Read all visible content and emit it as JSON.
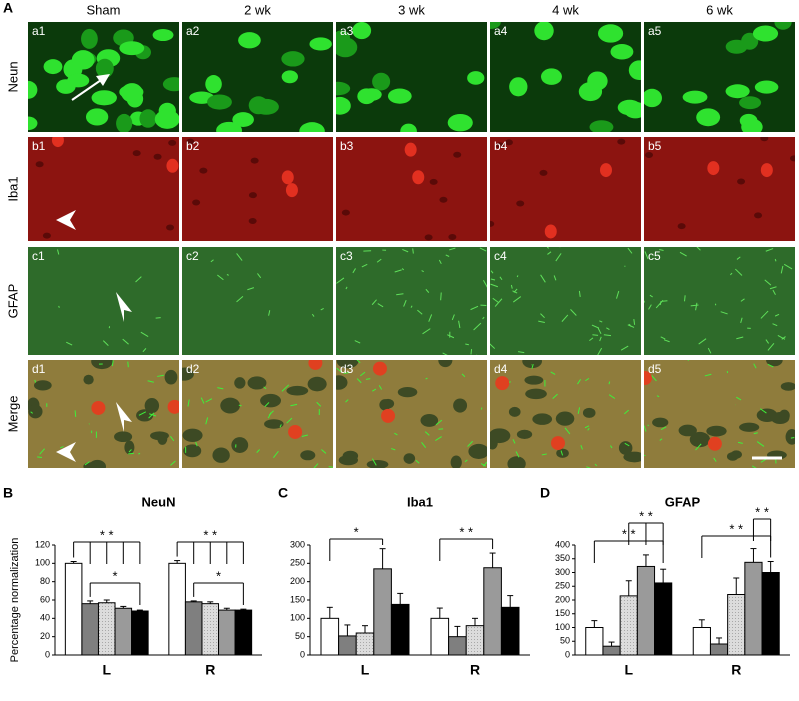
{
  "micrographs": {
    "letter": "A",
    "columns": [
      "Sham",
      "2 wk",
      "3 wk",
      "4 wk",
      "6 wk"
    ],
    "rows": [
      {
        "label": "Neun",
        "tiles": [
          "a1",
          "a2",
          "a3",
          "a4",
          "a5"
        ]
      },
      {
        "label": "Iba1",
        "tiles": [
          "b1",
          "b2",
          "b3",
          "b4",
          "b5"
        ]
      },
      {
        "label": "GFAP",
        "tiles": [
          "c1",
          "c2",
          "c3",
          "c4",
          "c5"
        ]
      },
      {
        "label": "Merge",
        "tiles": [
          "d1",
          "d2",
          "d3",
          "d4",
          "d5"
        ]
      }
    ]
  },
  "chart_data": [
    {
      "type": "bar",
      "letter": "B",
      "title": "NeuN",
      "ylabel": "Percentage normalization",
      "categories": [
        "L",
        "R"
      ],
      "ylim": [
        0,
        120
      ],
      "yticks": [
        0,
        20,
        40,
        60,
        80,
        100,
        120
      ],
      "series": [
        {
          "color": "#ffffff",
          "values": [
            100,
            100
          ],
          "errors": [
            2,
            3
          ]
        },
        {
          "color": "#7f7f7f",
          "values": [
            56,
            58
          ],
          "errors": [
            3,
            1
          ]
        },
        {
          "color": "#d9d9d9",
          "values": [
            57,
            56
          ],
          "errors": [
            3,
            2
          ]
        },
        {
          "color": "#9a9a9a",
          "values": [
            51,
            49
          ],
          "errors": [
            2,
            2
          ]
        },
        {
          "color": "#000000",
          "values": [
            48,
            49
          ],
          "errors": [
            1,
            1
          ]
        }
      ],
      "annotations": [
        "* *",
        "*",
        "* *",
        "*"
      ]
    },
    {
      "type": "bar",
      "letter": "C",
      "title": "Iba1",
      "categories": [
        "L",
        "R"
      ],
      "ylim": [
        0,
        300
      ],
      "yticks": [
        0,
        50,
        100,
        150,
        200,
        250,
        300
      ],
      "series": [
        {
          "color": "#ffffff",
          "values": [
            100,
            100
          ],
          "errors": [
            30,
            28
          ]
        },
        {
          "color": "#7f7f7f",
          "values": [
            52,
            50
          ],
          "errors": [
            30,
            28
          ]
        },
        {
          "color": "#d9d9d9",
          "values": [
            60,
            80
          ],
          "errors": [
            20,
            20
          ]
        },
        {
          "color": "#9a9a9a",
          "values": [
            235,
            238
          ],
          "errors": [
            55,
            40
          ]
        },
        {
          "color": "#000000",
          "values": [
            138,
            130
          ],
          "errors": [
            30,
            32
          ]
        }
      ],
      "annotations": [
        "*",
        "* *"
      ]
    },
    {
      "type": "bar",
      "letter": "D",
      "title": "GFAP",
      "categories": [
        "L",
        "R"
      ],
      "ylim": [
        0,
        400
      ],
      "yticks": [
        0,
        50,
        100,
        150,
        200,
        250,
        300,
        350,
        400
      ],
      "series": [
        {
          "color": "#ffffff",
          "values": [
            100,
            100
          ],
          "errors": [
            25,
            28
          ]
        },
        {
          "color": "#7f7f7f",
          "values": [
            32,
            40
          ],
          "errors": [
            15,
            22
          ]
        },
        {
          "color": "#d9d9d9",
          "values": [
            215,
            220
          ],
          "errors": [
            55,
            60
          ]
        },
        {
          "color": "#9a9a9a",
          "values": [
            322,
            337
          ],
          "errors": [
            42,
            50
          ]
        },
        {
          "color": "#000000",
          "values": [
            262,
            300
          ],
          "errors": [
            50,
            40
          ]
        }
      ],
      "annotations": [
        "* *",
        "* *",
        "* *",
        "* *"
      ]
    }
  ]
}
